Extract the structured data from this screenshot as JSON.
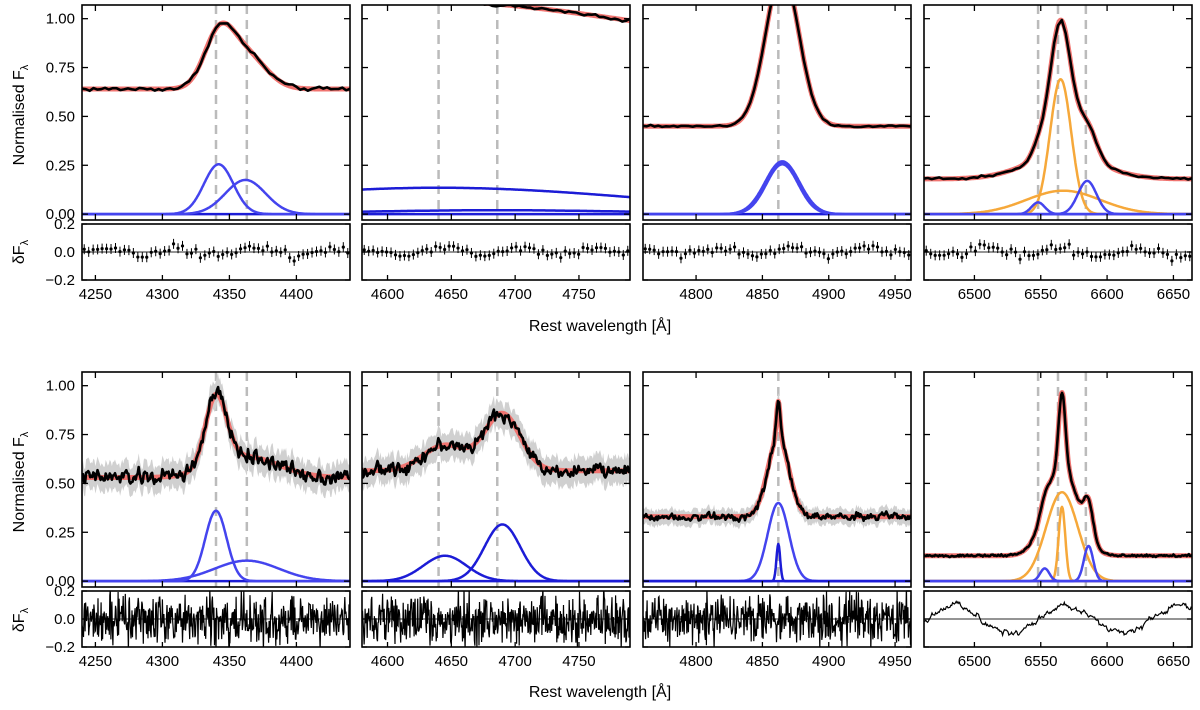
{
  "figure": {
    "ylabel_main": "Normalised F",
    "ylabel_main_sub": "λ",
    "ylabel_resid": "δF",
    "ylabel_resid_sub": "λ",
    "xlabel": "Rest wavelength [Å]"
  },
  "chart_data": {
    "type": "line",
    "colors": {
      "data": "#000000",
      "model": "#f07470",
      "narrow": "#1c1cd6",
      "broad": "#4444ee",
      "orange": "#f6a83a",
      "reference": "#bbbbbb",
      "error_band": "#d0d0d0"
    },
    "main_ylim": [
      -0.03,
      1.07
    ],
    "main_yticks": [
      0.0,
      0.25,
      0.5,
      0.75,
      1.0
    ],
    "main_ytick_labels": [
      "0.00",
      "0.25",
      "0.50",
      "0.75",
      "1.00"
    ],
    "resid_ylim": [
      -0.2,
      0.2
    ],
    "resid_yticks": [
      -0.2,
      0.0,
      0.2
    ],
    "resid_ytick_labels": [
      "−0.2",
      "0.0",
      "0.2"
    ],
    "column_xlims": [
      [
        4240,
        4440
      ],
      [
        4580,
        4790
      ],
      [
        4760,
        4962
      ],
      [
        6462,
        6664
      ]
    ],
    "column_xticks": [
      [
        4250,
        4300,
        4350,
        4400
      ],
      [
        4600,
        4650,
        4700,
        4750
      ],
      [
        4800,
        4850,
        4900,
        4950
      ],
      [
        6500,
        6550,
        6600,
        6650
      ]
    ],
    "rows": [
      {
        "panels": [
          {
            "refs": [
              4340,
              4363
            ],
            "continuum": 0.64,
            "lines": [
              {
                "center": 4342,
                "sigma": 11,
                "amp": 0.255,
                "kind": "broad"
              },
              {
                "center": 4362,
                "sigma": 15,
                "amp": 0.175,
                "kind": "broad"
              }
            ],
            "noise": 0.012,
            "band": 0,
            "resid": "points"
          },
          {
            "refs": [
              4640,
              4686
            ],
            "continuum": 0.96,
            "continuum_slope": -0.07,
            "lines": [
              {
                "center": 4640,
                "sigma": 160,
                "amp": 0.135,
                "kind": "narrow"
              },
              {
                "center": 4686,
                "sigma": 110,
                "amp": 0.02,
                "kind": "narrow"
              }
            ],
            "noise": 0.012,
            "band": 0,
            "resid": "points"
          },
          {
            "refs": [
              4862
            ],
            "continuum": 0.45,
            "lines": [
              {
                "center": 4865,
                "sigma": 13,
                "amp": 0.27,
                "kind": "broad"
              },
              {
                "center": 4865,
                "sigma": 12.5,
                "amp": 0.262,
                "kind": "broad"
              },
              {
                "center": 4865,
                "sigma": 12,
                "amp": 0.255,
                "kind": "broad"
              }
            ],
            "noise": 0.006,
            "band": 0,
            "resid": "points"
          },
          {
            "refs": [
              6548,
              6563,
              6584
            ],
            "continuum": 0.18,
            "lines": [
              {
                "center": 6565,
                "sigma": 8,
                "amp": 0.69,
                "kind": "orange"
              },
              {
                "center": 6567,
                "sigma": 28,
                "amp": 0.12,
                "kind": "orange"
              },
              {
                "center": 6548,
                "sigma": 5,
                "amp": 0.06,
                "kind": "broad"
              },
              {
                "center": 6585,
                "sigma": 7,
                "amp": 0.17,
                "kind": "broad"
              }
            ],
            "noise": 0.006,
            "band": 0,
            "resid": "points"
          }
        ]
      },
      {
        "panels": [
          {
            "refs": [
              4340,
              4363
            ],
            "continuum": 0.53,
            "lines": [
              {
                "center": 4340,
                "sigma": 8,
                "amp": 0.36,
                "kind": "broad"
              },
              {
                "center": 4363,
                "sigma": 24,
                "amp": 0.105,
                "kind": "broad"
              }
            ],
            "noise": 0.04,
            "band": 0.07,
            "resid": "dense"
          },
          {
            "refs": [
              4640,
              4686
            ],
            "continuum": 0.565,
            "continuum_slope": 0.0,
            "lines": [
              {
                "center": 4645,
                "sigma": 17,
                "amp": 0.13,
                "kind": "narrow"
              },
              {
                "center": 4690,
                "sigma": 14,
                "amp": 0.29,
                "kind": "narrow"
              }
            ],
            "noise": 0.035,
            "band": 0.07,
            "resid": "dense"
          },
          {
            "refs": [
              4862
            ],
            "continuum": 0.33,
            "lines": [
              {
                "center": 4862,
                "sigma": 8,
                "amp": 0.4,
                "kind": "broad"
              },
              {
                "center": 4862,
                "sigma": 1.4,
                "amp": 0.19,
                "kind": "narrow"
              }
            ],
            "noise": 0.02,
            "band": 0.04,
            "resid": "dense"
          },
          {
            "refs": [
              6548,
              6563,
              6584
            ],
            "continuum": 0.13,
            "lines": [
              {
                "center": 6566,
                "sigma": 12,
                "amp": 0.455,
                "kind": "orange"
              },
              {
                "center": 6566,
                "sigma": 2.5,
                "amp": 0.38,
                "kind": "orange"
              },
              {
                "center": 6553,
                "sigma": 3.5,
                "amp": 0.065,
                "kind": "broad"
              },
              {
                "center": 6586,
                "sigma": 3.5,
                "amp": 0.18,
                "kind": "broad"
              }
            ],
            "noise": 0.006,
            "band": 0.01,
            "resid": "line"
          }
        ]
      }
    ]
  }
}
